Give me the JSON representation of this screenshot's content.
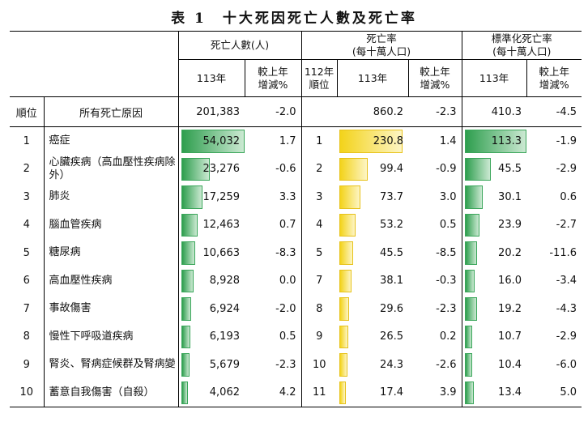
{
  "title": "表 1　十大死因死亡人數及死亡率",
  "headers": {
    "rank": "順位",
    "deaths_group": "死亡人數(人)",
    "rate_group_line1": "死亡率",
    "rate_group_line2": "(每十萬人口)",
    "std_group_line1": "標準化死亡率",
    "std_group_line2": "(每十萬人口)",
    "year113": "113年",
    "change_line1": "較上年",
    "change_line2": "增減%",
    "rank112_line1": "112年",
    "rank112_line2": "順位"
  },
  "total": {
    "rank_label": "順位",
    "cause": "所有死亡原因",
    "deaths": "201,383",
    "deaths_change": "-2.0",
    "rate": "860.2",
    "rate_change": "-2.3",
    "std": "410.3",
    "std_change": "-4.5"
  },
  "rows": [
    {
      "rank": "1",
      "cause": "癌症",
      "deaths": "54,032",
      "deaths_v": 54032,
      "deaths_change": "1.7",
      "rank112": "1",
      "rate": "230.8",
      "rate_v": 230.8,
      "rate_change": "1.4",
      "std": "113.3",
      "std_v": 113.3,
      "std_change": "-1.9"
    },
    {
      "rank": "2",
      "cause": "心臟疾病（高血壓性疾病除外）",
      "deaths": "23,276",
      "deaths_v": 23276,
      "deaths_change": "-0.6",
      "rank112": "2",
      "rate": "99.4",
      "rate_v": 99.4,
      "rate_change": "-0.9",
      "std": "45.5",
      "std_v": 45.5,
      "std_change": "-2.9"
    },
    {
      "rank": "3",
      "cause": "肺炎",
      "deaths": "17,259",
      "deaths_v": 17259,
      "deaths_change": "3.3",
      "rank112": "3",
      "rate": "73.7",
      "rate_v": 73.7,
      "rate_change": "3.0",
      "std": "30.1",
      "std_v": 30.1,
      "std_change": "0.6"
    },
    {
      "rank": "4",
      "cause": "腦血管疾病",
      "deaths": "12,463",
      "deaths_v": 12463,
      "deaths_change": "0.7",
      "rank112": "4",
      "rate": "53.2",
      "rate_v": 53.2,
      "rate_change": "0.5",
      "std": "23.9",
      "std_v": 23.9,
      "std_change": "-2.7"
    },
    {
      "rank": "5",
      "cause": "糖尿病",
      "deaths": "10,663",
      "deaths_v": 10663,
      "deaths_change": "-8.3",
      "rank112": "5",
      "rate": "45.5",
      "rate_v": 45.5,
      "rate_change": "-8.5",
      "std": "20.2",
      "std_v": 20.2,
      "std_change": "-11.6"
    },
    {
      "rank": "6",
      "cause": "高血壓性疾病",
      "deaths": "8,928",
      "deaths_v": 8928,
      "deaths_change": "0.0",
      "rank112": "7",
      "rate": "38.1",
      "rate_v": 38.1,
      "rate_change": "-0.3",
      "std": "16.0",
      "std_v": 16.0,
      "std_change": "-3.4"
    },
    {
      "rank": "7",
      "cause": "事故傷害",
      "deaths": "6,924",
      "deaths_v": 6924,
      "deaths_change": "-2.0",
      "rank112": "8",
      "rate": "29.6",
      "rate_v": 29.6,
      "rate_change": "-2.3",
      "std": "19.2",
      "std_v": 19.2,
      "std_change": "-4.3"
    },
    {
      "rank": "8",
      "cause": "慢性下呼吸道疾病",
      "deaths": "6,193",
      "deaths_v": 6193,
      "deaths_change": "0.5",
      "rank112": "9",
      "rate": "26.5",
      "rate_v": 26.5,
      "rate_change": "0.2",
      "std": "10.7",
      "std_v": 10.7,
      "std_change": "-2.9"
    },
    {
      "rank": "9",
      "cause": "腎炎、腎病症候群及腎病變",
      "deaths": "5,679",
      "deaths_v": 5679,
      "deaths_change": "-2.3",
      "rank112": "10",
      "rate": "24.3",
      "rate_v": 24.3,
      "rate_change": "-2.6",
      "std": "10.4",
      "std_v": 10.4,
      "std_change": "-6.0"
    },
    {
      "rank": "10",
      "cause": "蓄意自我傷害（自殺）",
      "deaths": "4,062",
      "deaths_v": 4062,
      "deaths_change": "4.2",
      "rank112": "11",
      "rate": "17.4",
      "rate_v": 17.4,
      "rate_change": "3.9",
      "std": "13.4",
      "std_v": 13.4,
      "std_change": "5.0"
    }
  ],
  "bar_colors": {
    "deaths": "green",
    "rate": "yellow",
    "std": "green"
  }
}
